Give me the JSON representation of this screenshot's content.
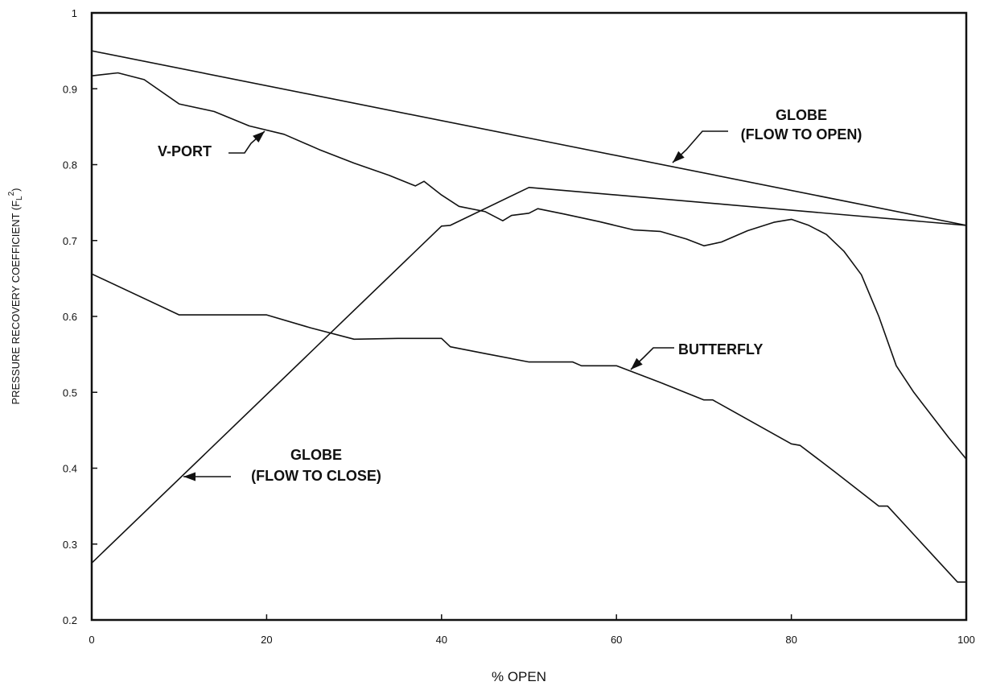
{
  "chart_data": {
    "type": "line",
    "title": "",
    "xlabel": "% OPEN",
    "ylabel_main": "PRESSURE RECOVERY COEFFICIENT (F",
    "ylabel_sub": "L",
    "ylabel_sup": "2",
    "ylabel_end": ")",
    "xlim": [
      0,
      100
    ],
    "ylim": [
      0.2,
      1.0
    ],
    "grid": false,
    "x_ticks": [
      0,
      20,
      40,
      60,
      80,
      100
    ],
    "x_tick_labels": [
      "0",
      "20",
      "40",
      "60",
      "80",
      "100"
    ],
    "y_ticks": [
      0.2,
      0.3,
      0.4,
      0.5,
      0.6,
      0.7,
      0.8,
      0.9,
      1.0
    ],
    "y_tick_labels": [
      "0.2",
      "0.3",
      "0.4",
      "0.5",
      "0.6",
      "0.7",
      "0.8",
      "0.9",
      "1"
    ],
    "series": [
      {
        "name": "GLOBE (FLOW TO OPEN)",
        "x": [
          0,
          50,
          100
        ],
        "y": [
          0.95,
          0.835,
          0.72
        ]
      },
      {
        "name": "V-PORT",
        "x": [
          0,
          3,
          6,
          10,
          14,
          18,
          22,
          26,
          30,
          34,
          37,
          38,
          40,
          42,
          45,
          47,
          48,
          50,
          51,
          54,
          58,
          62,
          65,
          68,
          70,
          72,
          75,
          78,
          80,
          82,
          84,
          86,
          88,
          90,
          92,
          94,
          96,
          98,
          100
        ],
        "y": [
          0.917,
          0.921,
          0.912,
          0.88,
          0.87,
          0.851,
          0.84,
          0.82,
          0.802,
          0.786,
          0.772,
          0.778,
          0.76,
          0.745,
          0.738,
          0.726,
          0.733,
          0.736,
          0.742,
          0.735,
          0.725,
          0.714,
          0.712,
          0.702,
          0.693,
          0.698,
          0.713,
          0.724,
          0.728,
          0.72,
          0.708,
          0.686,
          0.655,
          0.6,
          0.535,
          0.5,
          0.47,
          0.44,
          0.412
        ]
      },
      {
        "name": "GLOBE (FLOW TO CLOSE)",
        "x": [
          0,
          40,
          41,
          50,
          100
        ],
        "y": [
          0.275,
          0.719,
          0.72,
          0.77,
          0.72
        ]
      },
      {
        "name": "BUTTERFLY",
        "x": [
          0,
          10,
          20,
          25,
          30,
          35,
          40,
          41,
          45,
          50,
          55,
          56,
          60,
          65,
          70,
          71,
          80,
          81,
          85,
          90,
          91,
          99,
          100
        ],
        "y": [
          0.656,
          0.602,
          0.602,
          0.585,
          0.57,
          0.571,
          0.571,
          0.56,
          0.551,
          0.54,
          0.54,
          0.535,
          0.535,
          0.513,
          0.49,
          0.49,
          0.432,
          0.43,
          0.395,
          0.35,
          0.35,
          0.25,
          0.25
        ]
      }
    ],
    "annotations": [
      {
        "id": "vport",
        "text": [
          "V-PORT"
        ]
      },
      {
        "id": "globe-open",
        "text": [
          "GLOBE",
          "(FLOW TO OPEN)"
        ]
      },
      {
        "id": "butterfly",
        "text": [
          "BUTTERFLY"
        ]
      },
      {
        "id": "globe-close",
        "text": [
          "GLOBE",
          "(FLOW TO CLOSE)"
        ]
      }
    ]
  }
}
